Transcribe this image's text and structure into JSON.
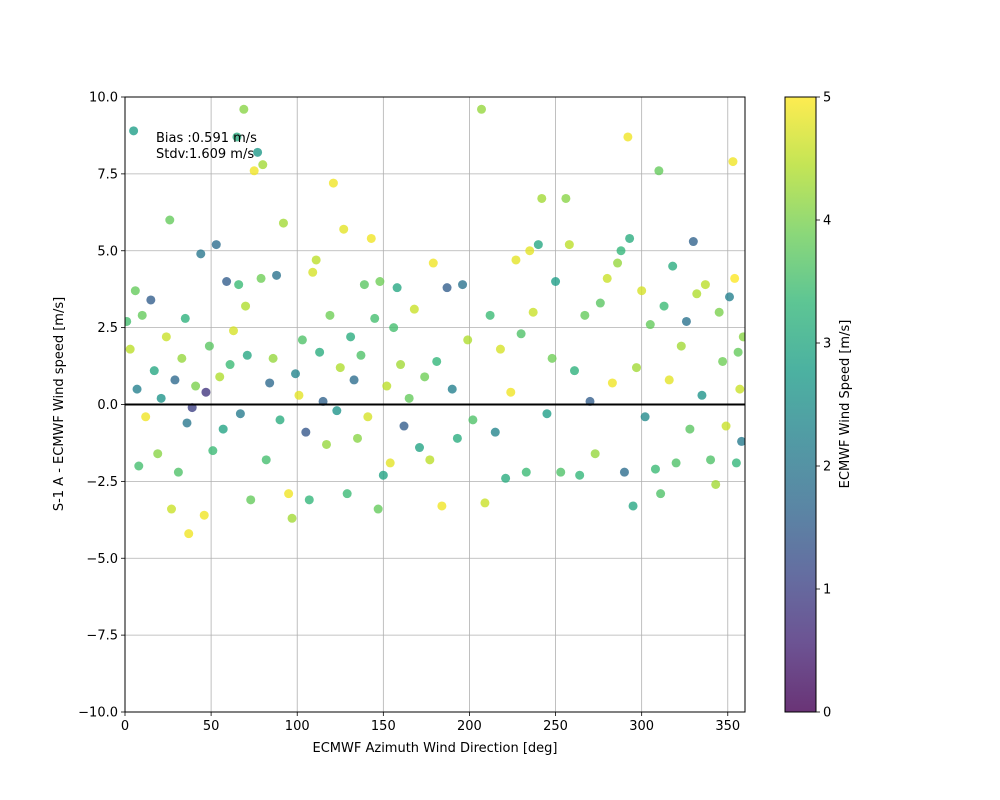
{
  "chart_data": {
    "type": "scatter",
    "xlabel": "ECMWF Azimuth Wind Direction [deg]",
    "ylabel": "S-1 A - ECMWF Wind speed [m/s]",
    "xlim": [
      0,
      360
    ],
    "ylim": [
      -10,
      10
    ],
    "xticks": [
      0,
      50,
      100,
      150,
      200,
      250,
      300,
      350
    ],
    "yticks": [
      -10.0,
      -7.5,
      -5.0,
      -2.5,
      0.0,
      2.5,
      5.0,
      7.5,
      10.0
    ],
    "xtick_labels": [
      "0",
      "50",
      "100",
      "150",
      "200",
      "250",
      "300",
      "350"
    ],
    "ytick_labels": [
      "−10.0",
      "−7.5",
      "−5.0",
      "−2.5",
      "0.0",
      "2.5",
      "5.0",
      "7.5",
      "10.0"
    ],
    "grid": true,
    "reference_line_y": 0,
    "annotations": [
      "Bias :0.591 m/s",
      "Stdv:1.609 m/s"
    ],
    "colorbar": {
      "label": "ECMWF Wind Speed [m/s]",
      "range": [
        0,
        5
      ],
      "ticks": [
        0,
        1,
        2,
        3,
        4,
        5
      ],
      "tick_labels": [
        "0",
        "1",
        "2",
        "3",
        "4",
        "5"
      ],
      "colormap": "viridis",
      "stops": [
        "#440154",
        "#482878",
        "#3e4989",
        "#31688e",
        "#26828e",
        "#1f9e89",
        "#35b779",
        "#6ece58",
        "#b5de2b",
        "#fde725"
      ]
    },
    "marker_alpha": 0.8,
    "points": [
      [
        1,
        2.7,
        3.5
      ],
      [
        3,
        1.8,
        4.5
      ],
      [
        5,
        8.9,
        2.8
      ],
      [
        6,
        3.7,
        3.8
      ],
      [
        7,
        0.5,
        2.2
      ],
      [
        8,
        -2,
        3.5
      ],
      [
        10,
        2.9,
        3.8
      ],
      [
        12,
        -0.4,
        4.9
      ],
      [
        15,
        3.4,
        1.5
      ],
      [
        17,
        1.1,
        3
      ],
      [
        19,
        -1.6,
        4.1
      ],
      [
        21,
        0.2,
        2.6
      ],
      [
        24,
        2.2,
        4.6
      ],
      [
        26,
        6,
        3.8
      ],
      [
        27,
        -3.4,
        4.6
      ],
      [
        29,
        0.8,
        1.7
      ],
      [
        31,
        -2.2,
        3.6
      ],
      [
        33,
        1.5,
        4.2
      ],
      [
        35,
        2.8,
        3.2
      ],
      [
        36,
        -0.6,
        2
      ],
      [
        37,
        -4.2,
        4.9
      ],
      [
        39,
        -0.1,
        1
      ],
      [
        41,
        0.6,
        4
      ],
      [
        44,
        4.9,
        2
      ],
      [
        46,
        -3.6,
        4.9
      ],
      [
        47,
        0.4,
        0.8
      ],
      [
        49,
        1.9,
        3.7
      ],
      [
        51,
        -1.5,
        3.4
      ],
      [
        53,
        5.2,
        1.8
      ],
      [
        55,
        0.9,
        4.4
      ],
      [
        57,
        -0.8,
        2.9
      ],
      [
        59,
        4,
        1.5
      ],
      [
        61,
        1.3,
        3.4
      ],
      [
        63,
        2.4,
        4.7
      ],
      [
        65,
        8.7,
        3.1
      ],
      [
        66,
        3.9,
        3.4
      ],
      [
        67,
        -0.3,
        2.1
      ],
      [
        69,
        9.6,
        4.1
      ],
      [
        70,
        3.2,
        4.4
      ],
      [
        71,
        1.6,
        3
      ],
      [
        73,
        -3.1,
        3.8
      ],
      [
        75,
        7.6,
        4.9
      ],
      [
        77,
        8.2,
        2.7
      ],
      [
        79,
        4.1,
        3.9
      ],
      [
        80,
        7.8,
        4.3
      ],
      [
        82,
        -1.8,
        3.5
      ],
      [
        84,
        0.7,
        1.7
      ],
      [
        86,
        1.5,
        4.2
      ],
      [
        88,
        4.2,
        1.9
      ],
      [
        90,
        -0.5,
        3.1
      ],
      [
        92,
        5.9,
        4.3
      ],
      [
        95,
        -2.9,
        4.9
      ],
      [
        97,
        -3.7,
        4.3
      ],
      [
        99,
        1,
        2.3
      ],
      [
        101,
        0.3,
        4.8
      ],
      [
        103,
        2.1,
        3.6
      ],
      [
        105,
        -0.9,
        1.4
      ],
      [
        107,
        -3.1,
        3.3
      ],
      [
        109,
        4.3,
        4.7
      ],
      [
        111,
        4.7,
        4.5
      ],
      [
        113,
        1.7,
        3.1
      ],
      [
        115,
        0.1,
        1.6
      ],
      [
        117,
        -1.3,
        4.2
      ],
      [
        119,
        2.9,
        3.9
      ],
      [
        121,
        7.2,
        4.9
      ],
      [
        123,
        -0.2,
        2.6
      ],
      [
        125,
        1.2,
        4.4
      ],
      [
        127,
        5.7,
        4.8
      ],
      [
        129,
        -2.9,
        3.4
      ],
      [
        131,
        2.2,
        3.1
      ],
      [
        133,
        0.8,
        1.8
      ],
      [
        135,
        -1.1,
        4.1
      ],
      [
        137,
        1.6,
        3.6
      ],
      [
        139,
        3.9,
        3.7
      ],
      [
        141,
        -0.4,
        4.7
      ],
      [
        143,
        5.4,
        4.9
      ],
      [
        145,
        2.8,
        3.5
      ],
      [
        147,
        -3.4,
        3.8
      ],
      [
        148,
        4,
        3.9
      ],
      [
        150,
        -2.3,
        2.9
      ],
      [
        152,
        0.6,
        4.5
      ],
      [
        154,
        -1.9,
        4.8
      ],
      [
        156,
        2.5,
        3.5
      ],
      [
        158,
        3.8,
        3
      ],
      [
        160,
        1.3,
        4.3
      ],
      [
        162,
        -0.7,
        1.5
      ],
      [
        165,
        0.2,
        3.8
      ],
      [
        168,
        3.1,
        4.6
      ],
      [
        171,
        -1.4,
        2.9
      ],
      [
        174,
        0.9,
        3.9
      ],
      [
        177,
        -1.8,
        4.5
      ],
      [
        179,
        4.6,
        4.9
      ],
      [
        181,
        1.4,
        3.3
      ],
      [
        184,
        -3.3,
        4.9
      ],
      [
        187,
        3.8,
        1.5
      ],
      [
        190,
        0.5,
        2.2
      ],
      [
        193,
        -1.1,
        3.1
      ],
      [
        196,
        3.9,
        1.9
      ],
      [
        199,
        2.1,
        4.4
      ],
      [
        202,
        -0.5,
        3.6
      ],
      [
        207,
        9.6,
        4.2
      ],
      [
        209,
        -3.2,
        4.6
      ],
      [
        212,
        2.9,
        3.4
      ],
      [
        215,
        -0.9,
        2.3
      ],
      [
        218,
        1.8,
        4.7
      ],
      [
        221,
        -2.4,
        3.1
      ],
      [
        224,
        0.4,
        4.9
      ],
      [
        227,
        4.7,
        4.8
      ],
      [
        230,
        2.3,
        3.6
      ],
      [
        233,
        -2.2,
        3.4
      ],
      [
        235,
        5,
        4.8
      ],
      [
        237,
        3,
        4.6
      ],
      [
        240,
        5.2,
        3
      ],
      [
        242,
        6.7,
        4.3
      ],
      [
        245,
        -0.3,
        2.8
      ],
      [
        248,
        1.5,
        3.9
      ],
      [
        250,
        4,
        2.8
      ],
      [
        253,
        -2.2,
        3.6
      ],
      [
        256,
        6.7,
        4.1
      ],
      [
        258,
        5.2,
        4.5
      ],
      [
        261,
        1.1,
        3.2
      ],
      [
        264,
        -2.3,
        3.3
      ],
      [
        267,
        2.9,
        3.8
      ],
      [
        270,
        0.1,
        1.5
      ],
      [
        273,
        -1.6,
        4.2
      ],
      [
        276,
        3.3,
        3.7
      ],
      [
        280,
        4.1,
        4.6
      ],
      [
        283,
        0.7,
        4.9
      ],
      [
        286,
        4.6,
        4.2
      ],
      [
        288,
        5,
        3.3
      ],
      [
        290,
        -2.2,
        1.8
      ],
      [
        292,
        8.7,
        4.9
      ],
      [
        293,
        5.4,
        3.1
      ],
      [
        295,
        -3.3,
        3
      ],
      [
        297,
        1.2,
        4.3
      ],
      [
        300,
        3.7,
        4.7
      ],
      [
        302,
        -0.4,
        2.4
      ],
      [
        305,
        2.6,
        3.8
      ],
      [
        308,
        -2.1,
        3.4
      ],
      [
        310,
        7.6,
        3.8
      ],
      [
        311,
        -2.9,
        3.6
      ],
      [
        313,
        3.2,
        3.4
      ],
      [
        316,
        0.8,
        4.8
      ],
      [
        318,
        4.5,
        3.1
      ],
      [
        320,
        -1.9,
        3.6
      ],
      [
        323,
        1.9,
        4.3
      ],
      [
        326,
        2.7,
        1.9
      ],
      [
        328,
        -0.8,
        3.7
      ],
      [
        330,
        5.3,
        1.6
      ],
      [
        332,
        3.6,
        4.4
      ],
      [
        335,
        0.3,
        2.6
      ],
      [
        337,
        3.9,
        4.5
      ],
      [
        340,
        -1.8,
        3.6
      ],
      [
        343,
        -2.6,
        4.3
      ],
      [
        345,
        3,
        4
      ],
      [
        347,
        1.4,
        3.9
      ],
      [
        349,
        -0.7,
        4.6
      ],
      [
        351,
        3.5,
        2.2
      ],
      [
        353,
        7.9,
        4.9
      ],
      [
        354,
        4.1,
        5
      ],
      [
        355,
        -1.9,
        3.3
      ],
      [
        356,
        1.7,
        3.8
      ],
      [
        357,
        0.5,
        4.6
      ],
      [
        358,
        -1.2,
        2.1
      ],
      [
        359,
        2.2,
        4.1
      ]
    ]
  }
}
